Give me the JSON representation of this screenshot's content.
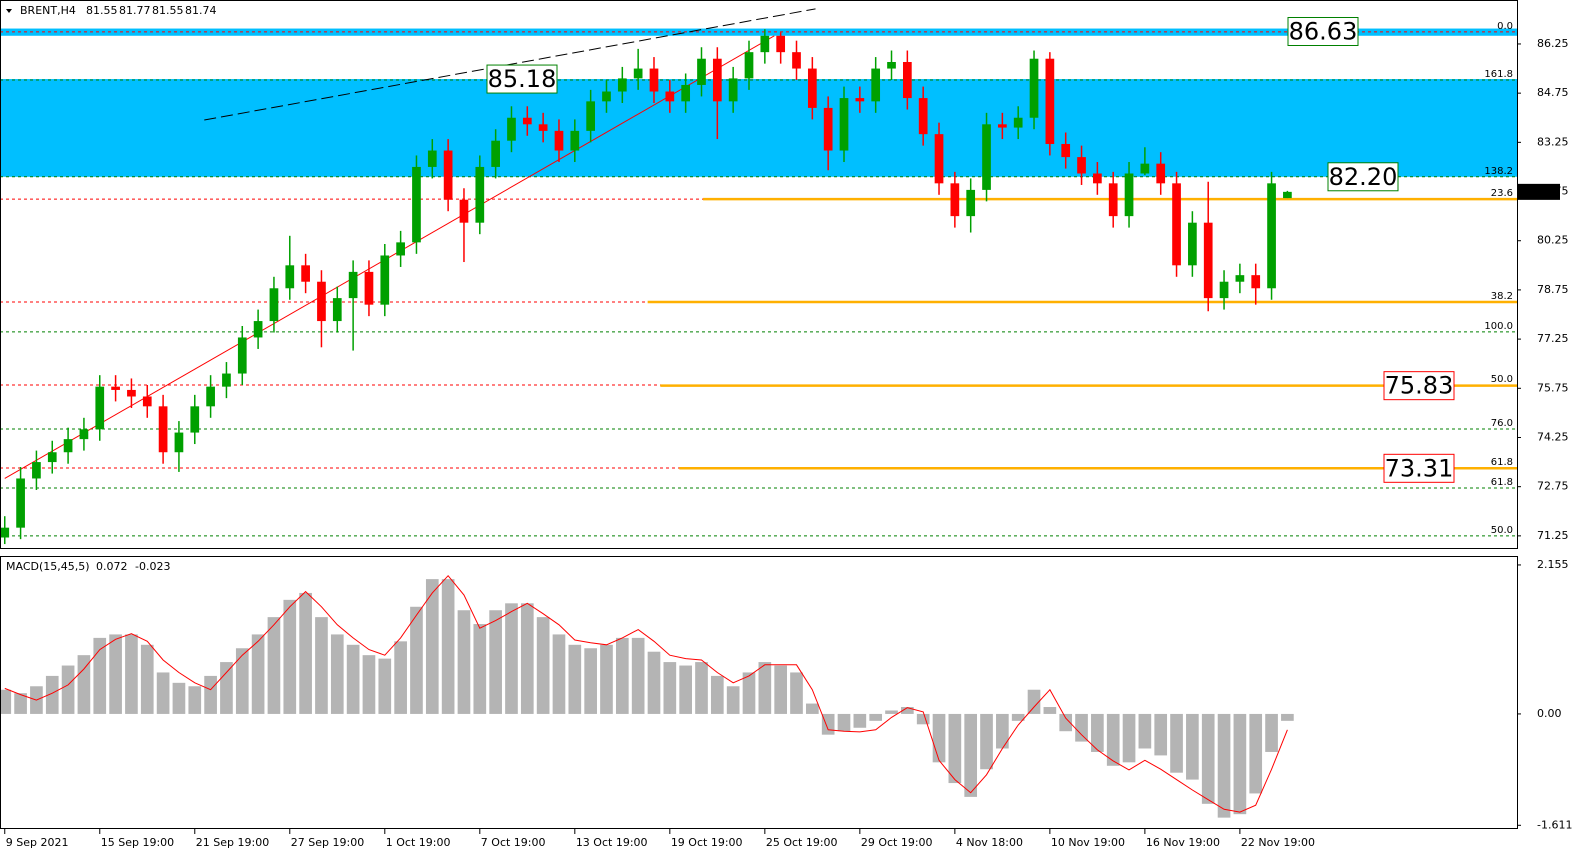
{
  "chart_data": [
    {
      "type": "candlestick",
      "symbol": "BRENT,H4",
      "xlim": [
        -0.3,
        95.5
      ],
      "ylim": [
        70.88,
        87.56
      ],
      "yticks": [
        71.25,
        72.75,
        74.25,
        75.75,
        77.25,
        78.75,
        80.25,
        81.75,
        83.25,
        84.75,
        86.25
      ],
      "xticks": [
        {
          "value": 0,
          "label": "9 Sep 2021"
        },
        {
          "value": 6,
          "label": "15 Sep 19:00"
        },
        {
          "value": 12,
          "label": "21 Sep 19:00"
        },
        {
          "value": 18,
          "label": "27 Sep 19:00"
        },
        {
          "value": 24,
          "label": "1 Oct 19:00"
        },
        {
          "value": 30,
          "label": "7 Oct 19:00"
        },
        {
          "value": 36,
          "label": "13 Oct 19:00"
        },
        {
          "value": 42,
          "label": "19 Oct 19:00"
        },
        {
          "value": 48,
          "label": "25 Oct 19:00"
        },
        {
          "value": 54,
          "label": "29 Oct 19:00"
        },
        {
          "value": 60,
          "label": "4 Nov 18:00"
        },
        {
          "value": 66,
          "label": "10 Nov 19:00"
        },
        {
          "value": 72,
          "label": "16 Nov 19:00"
        },
        {
          "value": 78,
          "label": "22 Nov 19:00"
        }
      ],
      "up_color": "#00a000",
      "down_color": "#ff0000",
      "open": [
        71.2,
        71.5,
        73.0,
        73.5,
        73.8,
        74.2,
        74.5,
        75.8,
        75.7,
        75.5,
        75.2,
        73.8,
        74.4,
        75.2,
        75.8,
        76.2,
        77.3,
        77.8,
        78.8,
        79.5,
        79.0,
        77.8,
        78.5,
        79.3,
        78.3,
        79.8,
        80.2,
        82.5,
        83.0,
        81.5,
        80.8,
        82.5,
        83.3,
        84.0,
        83.8,
        83.6,
        83.0,
        83.6,
        84.5,
        84.8,
        85.2,
        85.5,
        84.8,
        84.5,
        85.0,
        85.8,
        84.5,
        85.2,
        86.0,
        86.5,
        86.0,
        85.5,
        84.3,
        83.0,
        84.6,
        84.5,
        85.5,
        85.7,
        84.6,
        83.5,
        82.0,
        81.0,
        81.8,
        83.8,
        83.7,
        84.0,
        85.8,
        83.2,
        82.8,
        82.3,
        82.0,
        81.0,
        82.3,
        82.6,
        82.0,
        79.5,
        80.8,
        78.5,
        79.0,
        79.2,
        78.8,
        81.55
      ],
      "high": [
        71.85,
        73.35,
        73.85,
        74.15,
        74.55,
        74.85,
        76.15,
        76.15,
        76.05,
        75.85,
        75.55,
        74.75,
        75.55,
        76.15,
        76.55,
        77.65,
        78.15,
        79.15,
        80.4,
        79.85,
        79.35,
        78.85,
        79.65,
        79.65,
        80.15,
        80.55,
        82.85,
        83.35,
        83.35,
        81.85,
        82.85,
        83.65,
        84.35,
        84.35,
        84.15,
        83.95,
        83.95,
        84.85,
        85.15,
        85.55,
        86.1,
        85.85,
        85.15,
        85.35,
        86.15,
        86.15,
        85.55,
        86.35,
        86.7,
        86.6,
        86.35,
        85.85,
        84.65,
        84.95,
        84.95,
        85.85,
        86.05,
        86.05,
        84.95,
        83.85,
        82.35,
        82.15,
        84.15,
        84.15,
        84.35,
        86.05,
        86.0,
        83.55,
        83.15,
        82.65,
        82.35,
        82.65,
        83.1,
        82.95,
        82.35,
        81.15,
        82.05,
        79.35,
        79.55,
        79.55,
        82.35,
        81.77
      ],
      "low": [
        71.0,
        71.15,
        72.65,
        73.15,
        73.45,
        73.85,
        74.15,
        75.35,
        75.15,
        74.85,
        73.45,
        73.2,
        74.05,
        74.85,
        75.45,
        75.85,
        76.95,
        77.45,
        78.45,
        78.65,
        77.0,
        77.45,
        76.9,
        77.95,
        77.95,
        79.45,
        79.85,
        82.15,
        81.15,
        79.6,
        80.45,
        82.15,
        82.95,
        83.45,
        83.25,
        82.65,
        82.65,
        83.25,
        84.15,
        84.45,
        84.85,
        84.45,
        84.15,
        84.15,
        84.65,
        83.35,
        84.15,
        84.85,
        85.65,
        85.65,
        85.15,
        83.95,
        82.4,
        82.65,
        84.15,
        84.15,
        85.15,
        84.25,
        83.15,
        81.65,
        80.65,
        80.5,
        81.45,
        83.35,
        83.35,
        83.65,
        82.85,
        82.45,
        81.95,
        81.65,
        80.65,
        80.65,
        82.25,
        81.65,
        79.15,
        79.15,
        78.1,
        78.15,
        78.65,
        78.3,
        78.45,
        81.55
      ],
      "close": [
        71.5,
        73.0,
        73.5,
        73.8,
        74.2,
        74.5,
        75.8,
        75.7,
        75.5,
        75.2,
        73.8,
        74.4,
        75.2,
        75.8,
        76.2,
        77.3,
        77.8,
        78.8,
        79.5,
        79.0,
        77.8,
        78.5,
        79.3,
        78.3,
        79.8,
        80.2,
        82.5,
        83.0,
        81.5,
        80.8,
        82.5,
        83.3,
        84.0,
        83.8,
        83.6,
        83.0,
        83.6,
        84.5,
        84.8,
        85.2,
        85.5,
        84.8,
        84.5,
        85.0,
        85.8,
        84.5,
        85.2,
        86.0,
        86.5,
        86.0,
        85.5,
        84.3,
        83.0,
        84.6,
        84.5,
        85.5,
        85.7,
        84.6,
        83.5,
        82.0,
        81.0,
        81.8,
        83.8,
        83.7,
        84.0,
        85.8,
        83.2,
        82.8,
        82.3,
        82.0,
        81.0,
        82.3,
        82.6,
        82.0,
        79.5,
        80.8,
        78.5,
        79.0,
        79.2,
        78.8,
        82.0,
        81.74
      ],
      "zones": [
        {
          "from": 86.5,
          "to": 86.72,
          "color": "#00bfff"
        },
        {
          "from": 82.2,
          "to": 85.18,
          "color": "#00bfff"
        }
      ],
      "fib_levels": [
        {
          "label": "0.0",
          "value": 86.62,
          "color": "#ff0000"
        },
        {
          "label": "161.8",
          "value": 85.15,
          "color": "#008000"
        },
        {
          "label": "138.2",
          "value": 82.2,
          "color": "#008000"
        },
        {
          "label": "23.6",
          "value": 81.52,
          "color": "#ff0000"
        },
        {
          "label": "38.2",
          "value": 78.38,
          "color": "#ff0000"
        },
        {
          "label": "100.0",
          "value": 77.47,
          "color": "#008000"
        },
        {
          "label": "50.0",
          "value": 75.85,
          "color": "#ff0000"
        },
        {
          "label": "76.0",
          "value": 74.51,
          "color": "#008000"
        },
        {
          "label": "61.8",
          "value": 73.32,
          "color": "#ff0000"
        },
        {
          "label": "61.8",
          "value": 72.71,
          "color": "#008000"
        },
        {
          "label": "50.0",
          "value": 71.25,
          "color": "#008000"
        }
      ],
      "support_lines": [
        {
          "value": 81.52,
          "from": 44.1
        },
        {
          "value": 78.38,
          "from": 40.6
        },
        {
          "value": 75.83,
          "from": 41.4
        },
        {
          "value": 73.31,
          "from": 42.6
        }
      ],
      "support_color": "#ffb000",
      "trend_lines": [
        {
          "x": [
            0,
            48.6
          ],
          "y": [
            73.0,
            86.5
          ],
          "color": "#ff0000",
          "dashed": false
        },
        {
          "x": [
            12.6,
            51.2
          ],
          "y": [
            83.93,
            87.32
          ],
          "color": "#000000",
          "dashed": true
        }
      ],
      "price_labels": [
        {
          "value": 86.63,
          "color": "#008000"
        },
        {
          "value": 85.18,
          "color": "#008000"
        },
        {
          "value": 82.2,
          "label": "82.20",
          "color": "#008000"
        },
        {
          "value": 75.83,
          "color": "#ff0000"
        },
        {
          "value": 73.31,
          "color": "#ff0000"
        }
      ]
    },
    {
      "type": "macd",
      "title": "MACD(15,45,5)",
      "main_value": 0.072,
      "signal_value": -0.023,
      "xlim": [
        -0.3,
        95.5
      ],
      "ylim": [
        -1.65,
        2.27
      ],
      "yticks": [
        2.155,
        {
          "value": 0,
          "label": "0.00"
        },
        -1.611
      ],
      "histogram": {
        "color": "#b4b4b4",
        "values": [
          0.35,
          0.3,
          0.4,
          0.55,
          0.7,
          0.85,
          1.1,
          1.15,
          1.15,
          1.0,
          0.6,
          0.45,
          0.4,
          0.55,
          0.75,
          0.95,
          1.15,
          1.4,
          1.65,
          1.75,
          1.4,
          1.15,
          1.0,
          0.85,
          0.8,
          1.05,
          1.55,
          1.95,
          1.95,
          1.5,
          1.3,
          1.5,
          1.6,
          1.6,
          1.4,
          1.15,
          1.0,
          0.95,
          1.0,
          1.1,
          1.1,
          0.9,
          0.75,
          0.7,
          0.75,
          0.55,
          0.4,
          0.6,
          0.75,
          0.7,
          0.6,
          0.15,
          -0.3,
          -0.25,
          -0.2,
          -0.1,
          0.05,
          0.1,
          -0.15,
          -0.7,
          -1.0,
          -1.2,
          -0.8,
          -0.5,
          -0.1,
          0.35,
          0.1,
          -0.25,
          -0.4,
          -0.55,
          -0.75,
          -0.7,
          -0.5,
          -0.6,
          -0.85,
          -0.95,
          -1.3,
          -1.5,
          -1.45,
          -1.15,
          -0.55,
          -0.1
        ]
      },
      "signal": {
        "color": "#ff0000",
        "values": [
          0.37,
          0.28,
          0.2,
          0.3,
          0.42,
          0.65,
          0.93,
          1.08,
          1.16,
          1.05,
          0.78,
          0.6,
          0.45,
          0.35,
          0.6,
          0.85,
          1.05,
          1.29,
          1.55,
          1.77,
          1.55,
          1.29,
          1.1,
          0.93,
          0.85,
          1.1,
          1.43,
          1.75,
          2.0,
          1.72,
          1.24,
          1.35,
          1.48,
          1.6,
          1.45,
          1.29,
          1.07,
          1.03,
          1.0,
          1.1,
          1.22,
          1.05,
          0.85,
          0.8,
          0.78,
          0.6,
          0.45,
          0.55,
          0.71,
          0.71,
          0.71,
          0.35,
          -0.23,
          -0.25,
          -0.26,
          -0.23,
          -0.05,
          0.09,
          0.03,
          -0.67,
          -0.95,
          -1.14,
          -0.88,
          -0.5,
          -0.16,
          0.1,
          0.35,
          -0.06,
          -0.3,
          -0.52,
          -0.68,
          -0.81,
          -0.67,
          -0.8,
          -0.95,
          -1.1,
          -1.24,
          -1.38,
          -1.42,
          -1.32,
          -0.8,
          -0.23
        ]
      }
    }
  ]
}
